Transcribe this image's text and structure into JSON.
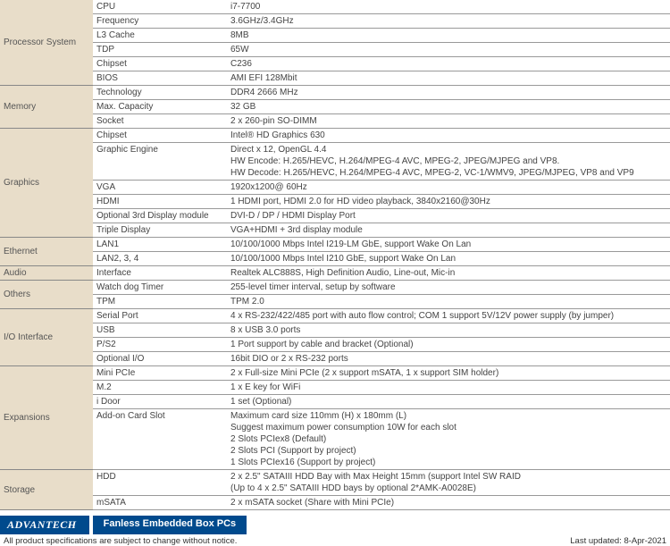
{
  "colors": {
    "category_bg": "#e8ddc9",
    "border": "#999999",
    "brand_bg": "#004a8d",
    "text": "#333333"
  },
  "columns": {
    "cat_w": 104,
    "sub_w": 150,
    "val_w": 496
  },
  "categories": [
    {
      "name": "Processor System",
      "rows": [
        {
          "sub": "CPU",
          "val": "i7-7700"
        },
        {
          "sub": "Frequency",
          "val": "3.6GHz/3.4GHz"
        },
        {
          "sub": "L3 Cache",
          "val": "8MB"
        },
        {
          "sub": "TDP",
          "val": "65W"
        },
        {
          "sub": "Chipset",
          "val": "C236"
        },
        {
          "sub": "BIOS",
          "val": "AMI EFI 128Mbit"
        }
      ]
    },
    {
      "name": "Memory",
      "rows": [
        {
          "sub": "Technology",
          "val": "DDR4 2666 MHz"
        },
        {
          "sub": "Max. Capacity",
          "val": "32 GB"
        },
        {
          "sub": "Socket",
          "val": "2 x 260-pin SO-DIMM"
        }
      ]
    },
    {
      "name": "Graphics",
      "rows": [
        {
          "sub": "Chipset",
          "val": "Intel® HD Graphics 630"
        },
        {
          "sub": "Graphic Engine",
          "val": "Direct x 12, OpenGL 4.4\nHW Encode: H.265/HEVC, H.264/MPEG-4 AVC, MPEG-2, JPEG/MJPEG and VP8.\nHW Decode: H.265/HEVC, H.264/MPEG-4 AVC, MPEG-2, VC-1/WMV9, JPEG/MJPEG, VP8 and VP9"
        },
        {
          "sub": "VGA",
          "val": "1920x1200@ 60Hz"
        },
        {
          "sub": "HDMI",
          "val": "1 HDMI port, HDMI 2.0 for HD video playback, 3840x2160@30Hz"
        },
        {
          "sub": "Optional 3rd Display module",
          "val": "DVI-D / DP / HDMI Display Port"
        },
        {
          "sub": "Triple Display",
          "val": "VGA+HDMI + 3rd display module"
        }
      ]
    },
    {
      "name": "Ethernet",
      "rows": [
        {
          "sub": "LAN1",
          "val": "10/100/1000 Mbps Intel I219-LM GbE, support Wake On Lan"
        },
        {
          "sub": "LAN2, 3, 4",
          "val": "10/100/1000 Mbps Intel I210 GbE, support Wake On Lan"
        }
      ]
    },
    {
      "name": "Audio",
      "rows": [
        {
          "sub": "Interface",
          "val": "Realtek ALC888S, High Definition Audio, Line-out, Mic-in"
        }
      ]
    },
    {
      "name": "Others",
      "rows": [
        {
          "sub": "Watch dog Timer",
          "val": "255-level timer interval, setup by software"
        },
        {
          "sub": "TPM",
          "val": "TPM 2.0"
        }
      ]
    },
    {
      "name": "I/O Interface",
      "rows": [
        {
          "sub": "Serial Port",
          "val": "4 x RS-232/422/485 port with auto flow control; COM 1 support 5V/12V power supply (by jumper)"
        },
        {
          "sub": "USB",
          "val": "8 x USB 3.0 ports"
        },
        {
          "sub": "P/S2",
          "val": "1 Port support by cable and bracket (Optional)"
        },
        {
          "sub": "Optional I/O",
          "val": "16bit DIO or 2 x RS-232 ports"
        }
      ]
    },
    {
      "name": "Expansions",
      "rows": [
        {
          "sub": "Mini PCIe",
          "val": "2 x Full-size Mini PCIe (2 x support mSATA, 1 x support SIM holder)"
        },
        {
          "sub": "M.2",
          "val": "1 x E key for WiFi"
        },
        {
          "sub": "i Door",
          "val": "1 set (Optional)"
        },
        {
          "sub": "Add-on Card Slot",
          "val": "Maximum card size 110mm (H) x 180mm (L)\nSuggest maximum power consumption 10W for each slot\n2 Slots PCIex8 (Default)\n2 Slots PCI (Support by project)\n1 Slots PCIex16 (Support by project)"
        }
      ]
    },
    {
      "name": "Storage",
      "rows": [
        {
          "sub": "HDD",
          "val": "2 x 2.5\" SATAIII HDD Bay with Max Height 15mm (support Intel SW RAID\n(Up to 4 x 2.5\" SATAIII HDD bays by optional 2*AMK-A0028E)"
        },
        {
          "sub": "mSATA",
          "val": "2 x mSATA socket (Share with Mini PCIe)"
        }
      ]
    }
  ],
  "footer": {
    "brand": "ADVANTECH",
    "tagline": "Fanless Embedded Box PCs",
    "disclaimer": "All product specifications are subject to change without notice.",
    "updated": "Last updated: 8-Apr-2021"
  }
}
